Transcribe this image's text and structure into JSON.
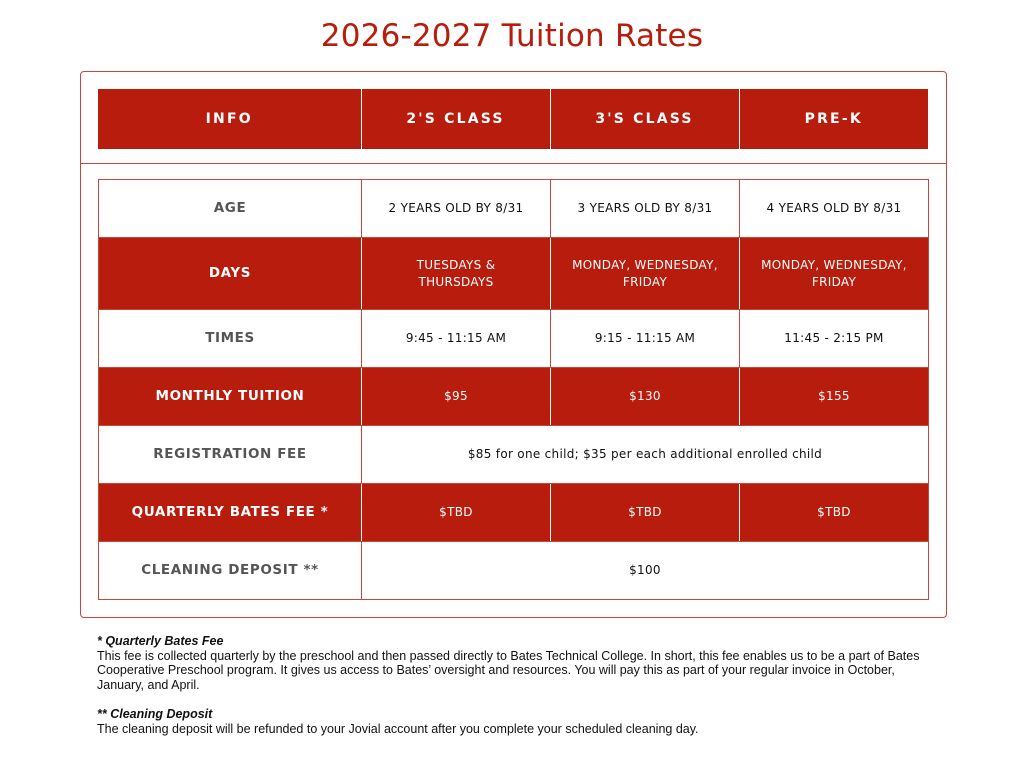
{
  "title": "2026-2027 Tuition Rates",
  "table": {
    "headers": [
      "INFO",
      "2'S CLASS",
      "3'S CLASS",
      "PRE-K"
    ],
    "rows": [
      {
        "label": "AGE",
        "cells": [
          "2 YEARS OLD BY 8/31",
          "3 YEARS OLD BY 8/31",
          "4 YEARS OLD BY 8/31"
        ]
      },
      {
        "label": "DAYS",
        "cells": [
          "TUESDAYS & THURSDAYS",
          "MONDAY, WEDNESDAY, FRIDAY",
          "MONDAY, WEDNESDAY, FRIDAY"
        ]
      },
      {
        "label": "TIMES",
        "cells": [
          "9:45 - 11:15 AM",
          "9:15 - 11:15 AM",
          "11:45 - 2:15 PM"
        ]
      },
      {
        "label": "MONTHLY TUITION",
        "cells": [
          "$95",
          "$130",
          "$155"
        ]
      },
      {
        "label": "REGISTRATION FEE",
        "cells": [
          "$85 for one child; $35 per each additional enrolled child"
        ]
      },
      {
        "label": "QUARTERLY BATES FEE *",
        "cells": [
          "$TBD",
          "$TBD",
          "$TBD"
        ]
      },
      {
        "label": "CLEANING DEPOSIT **",
        "cells": [
          "$100"
        ]
      }
    ]
  },
  "notes": [
    {
      "title": "* Quarterly Bates Fee",
      "body": "This fee is collected quarterly by the preschool and then passed directly to Bates Technical College. In short, this fee enables us to be a part of Bates Cooperative Preschool program. It gives us access to Bates’ oversight and resources. You will pay this as part of your regular invoice in October, January, and April."
    },
    {
      "title": "** Cleaning Deposit",
      "body": "The cleaning deposit will be refunded to your Jovial account after you complete your scheduled cleaning day."
    }
  ],
  "colors": {
    "accent": "#b81c0c",
    "border": "#c8463a",
    "label_gray": "#555555"
  }
}
